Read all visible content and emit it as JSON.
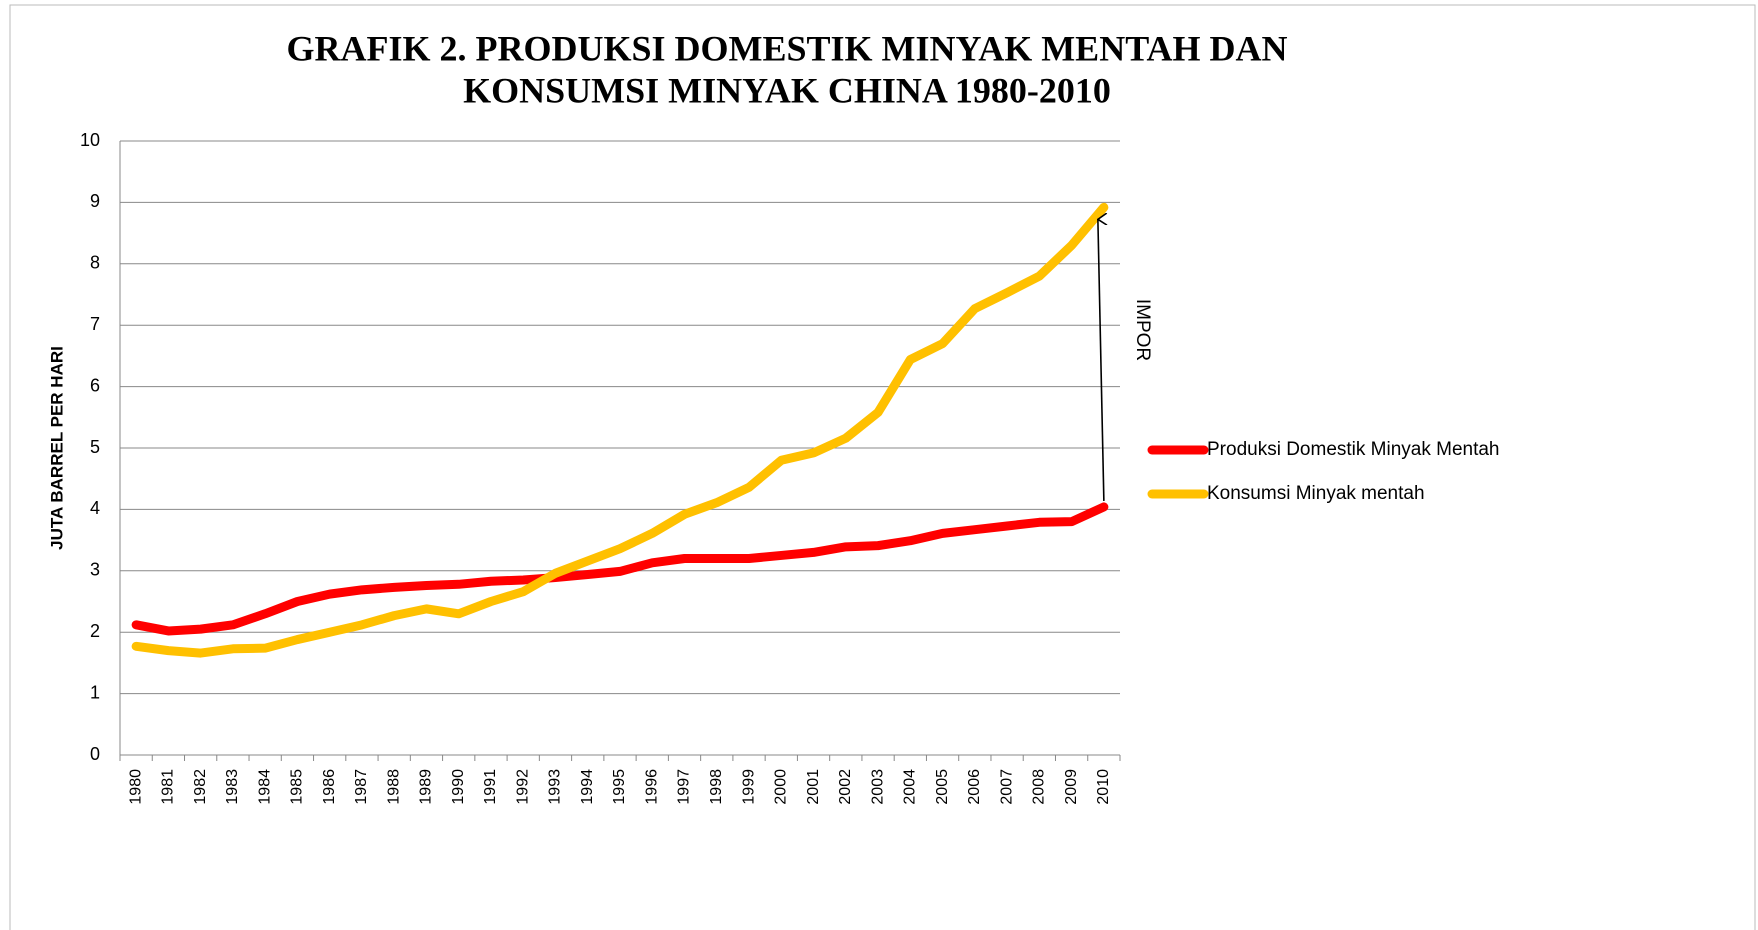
{
  "chart_data": {
    "type": "line",
    "title": [
      "GRAFIK 2. PRODUKSI DOMESTIK MINYAK MENTAH DAN",
      "KONSUMSI MINYAK CHINA 1980-2010"
    ],
    "y_label": "JUTA BARREL PER HARI",
    "annotation": "IMPOR",
    "categories": [
      "1980",
      "1981",
      "1982",
      "1983",
      "1984",
      "1985",
      "1986",
      "1987",
      "1988",
      "1989",
      "1990",
      "1991",
      "1992",
      "1993",
      "1994",
      "1995",
      "1996",
      "1997",
      "1998",
      "1999",
      "2000",
      "2001",
      "2002",
      "2003",
      "2004",
      "2005",
      "2006",
      "2007",
      "2008",
      "2009",
      "2010"
    ],
    "series": [
      {
        "name": "Produksi Domestik Minyak Mentah",
        "color": "#ff0000",
        "values": [
          2.12,
          2.02,
          2.05,
          2.12,
          2.3,
          2.5,
          2.62,
          2.69,
          2.73,
          2.76,
          2.78,
          2.83,
          2.85,
          2.89,
          2.94,
          2.99,
          3.13,
          3.2,
          3.2,
          3.2,
          3.25,
          3.3,
          3.39,
          3.41,
          3.49,
          3.61,
          3.67,
          3.73,
          3.79,
          3.8,
          4.04
        ]
      },
      {
        "name": "Konsumsi Minyak mentah",
        "color": "#ffc000",
        "values": [
          1.77,
          1.7,
          1.66,
          1.73,
          1.74,
          1.88,
          2.0,
          2.12,
          2.27,
          2.38,
          2.3,
          2.5,
          2.66,
          2.96,
          3.16,
          3.36,
          3.61,
          3.92,
          4.11,
          4.36,
          4.8,
          4.92,
          5.16,
          5.58,
          6.44,
          6.7,
          7.27,
          7.53,
          7.8,
          8.3,
          8.92
        ]
      }
    ],
    "ylim": [
      0,
      10
    ],
    "yticks": [
      0,
      1,
      2,
      3,
      4,
      5,
      6,
      7,
      8,
      9,
      10
    ],
    "grid": true,
    "legend": "right"
  }
}
